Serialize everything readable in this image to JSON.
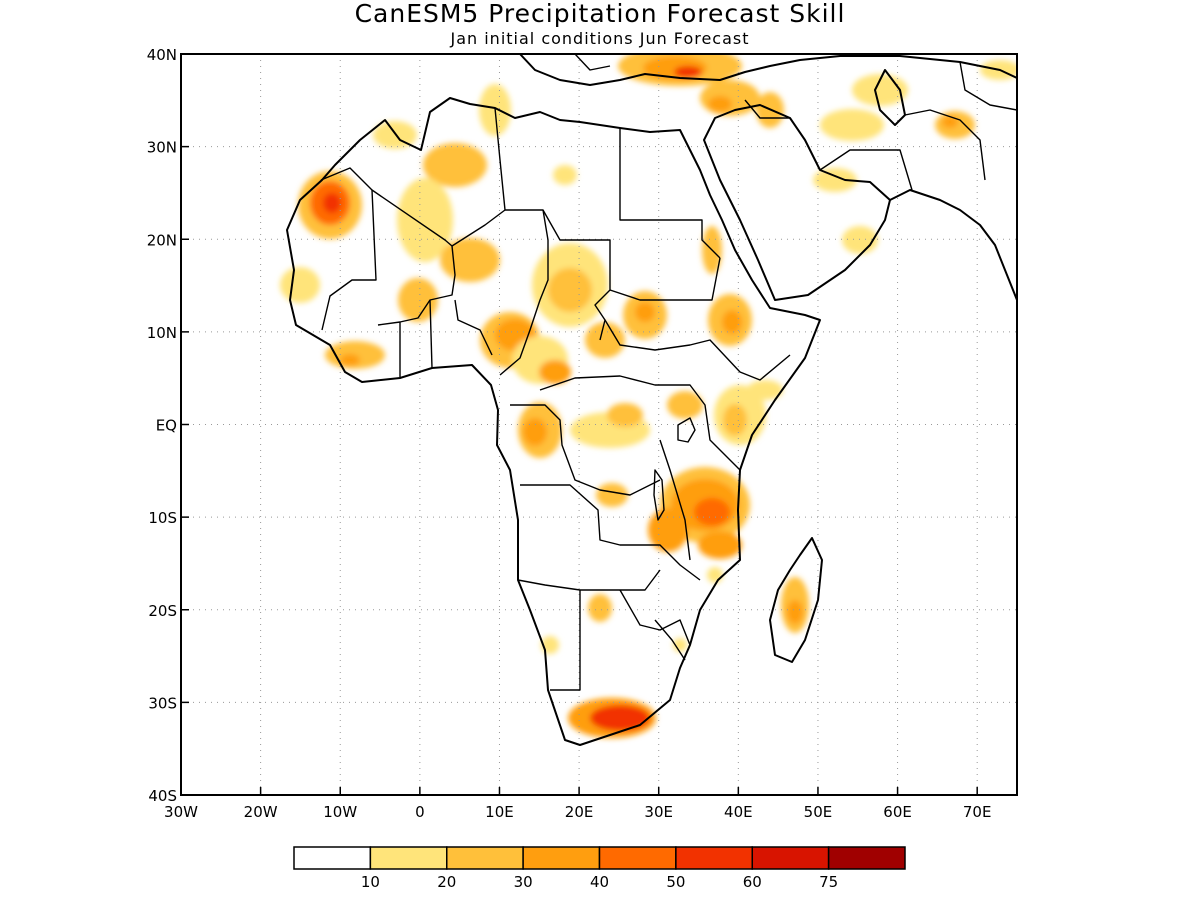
{
  "title": "CanESM5 Precipitation Forecast Skill",
  "subtitle": "Jan initial conditions   Jun Forecast",
  "map": {
    "lon_range": [
      -30,
      75
    ],
    "lat_range": [
      -40,
      40
    ],
    "lon_ticks": [
      "30W",
      "20W",
      "10W",
      "0",
      "10E",
      "20E",
      "30E",
      "40E",
      "50E",
      "60E",
      "70E"
    ],
    "lat_ticks": [
      "40N",
      "30N",
      "20N",
      "10N",
      "EQ",
      "10S",
      "20S",
      "30S",
      "40S"
    ]
  },
  "legend": {
    "labels": [
      "10",
      "20",
      "30",
      "40",
      "50",
      "60",
      "75"
    ],
    "colors": [
      "#ffffff",
      "#ffe47a",
      "#ffc03a",
      "#ff9e0f",
      "#ff6a00",
      "#f23200",
      "#d81400",
      "#a00000"
    ]
  }
}
